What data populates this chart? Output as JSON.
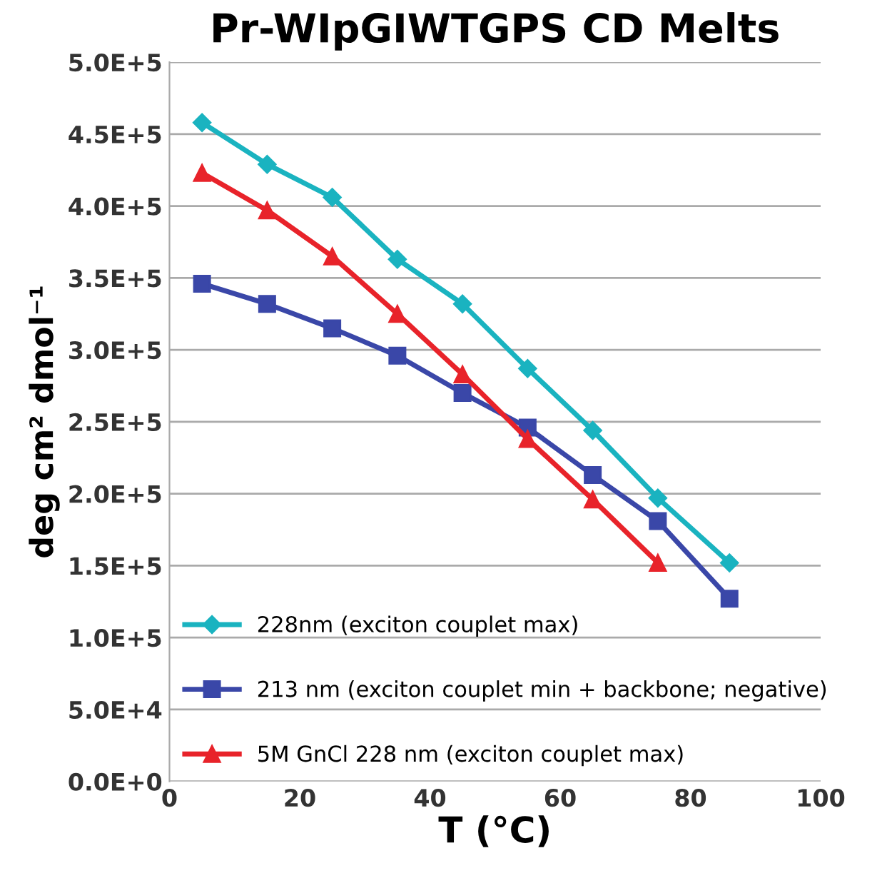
{
  "chart_data": {
    "type": "line",
    "title": "Pr-WIpGIWTGPS CD Melts",
    "xlabel": "T (°C)",
    "ylabel": "deg cm² dmol⁻¹",
    "x": [
      5,
      15,
      25,
      35,
      45,
      55,
      65,
      75,
      86
    ],
    "series": [
      {
        "name": "228nm (exciton couplet max)",
        "color": "#1ab3c0",
        "marker": "diamond",
        "values": [
          458000,
          429000,
          406000,
          363000,
          332000,
          287000,
          244000,
          197000,
          152000
        ]
      },
      {
        "name": "213 nm (exciton couplet min + backbone; negative)",
        "color": "#3a47a8",
        "marker": "square",
        "values": [
          346000,
          332000,
          315000,
          296000,
          270000,
          246000,
          213000,
          181000,
          127000
        ]
      },
      {
        "name": "5M GnCl 228 nm (exciton couplet max)",
        "color": "#e8232a",
        "marker": "triangle",
        "values": [
          423000,
          397000,
          365000,
          325000,
          283000,
          238000,
          196000,
          152000,
          null
        ]
      }
    ],
    "xlim": [
      0,
      100
    ],
    "xticks": [
      0,
      20,
      40,
      60,
      80,
      100
    ],
    "ylim": [
      0,
      500000
    ],
    "yticks": [
      {
        "value": 0,
        "label": "0.0E+0"
      },
      {
        "value": 50000,
        "label": "5.0E+4"
      },
      {
        "value": 100000,
        "label": "1.0E+5"
      },
      {
        "value": 150000,
        "label": "1.5E+5"
      },
      {
        "value": 200000,
        "label": "2.0E+5"
      },
      {
        "value": 250000,
        "label": "2.5E+5"
      },
      {
        "value": 300000,
        "label": "3.0E+5"
      },
      {
        "value": 350000,
        "label": "3.5E+5"
      },
      {
        "value": 400000,
        "label": "4.0E+5"
      },
      {
        "value": 450000,
        "label": "4.5E+5"
      },
      {
        "value": 500000,
        "label": "5.0E+5"
      }
    ],
    "grid": "y",
    "legend": "bottom left"
  }
}
